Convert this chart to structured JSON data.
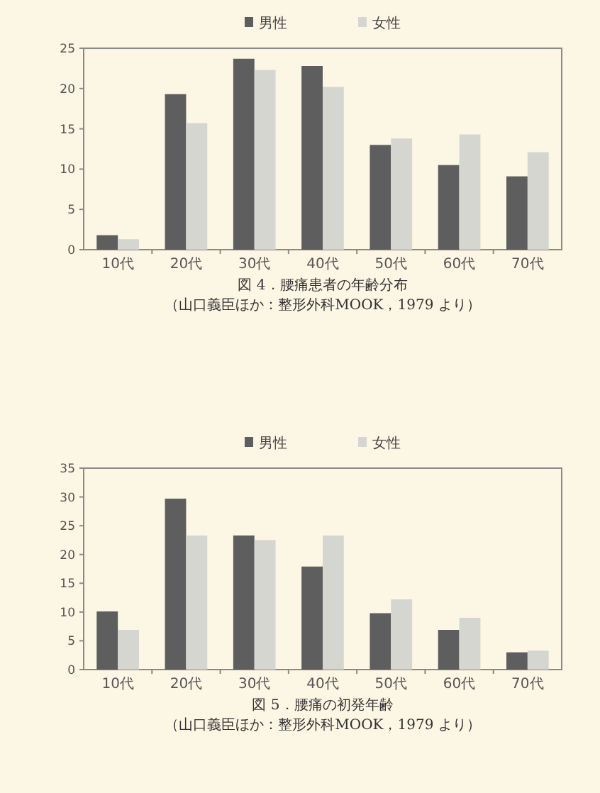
{
  "chart_data": [
    {
      "type": "bar",
      "title": "図 4．腰痛患者の年齢分布",
      "annotations": [
        "（山口義臣ほか：整形外科MOOK，1979 より）"
      ],
      "categories": [
        "10代",
        "20代",
        "30代",
        "40代",
        "50代",
        "60代",
        "70代"
      ],
      "series": [
        {
          "name": "男性",
          "color": "#5e5e5e",
          "values": [
            1.8,
            19.3,
            23.7,
            22.8,
            13.0,
            10.5,
            9.1
          ]
        },
        {
          "name": "女性",
          "color": "#d6d6d0",
          "values": [
            1.3,
            15.7,
            22.3,
            20.2,
            13.8,
            14.3,
            12.1
          ]
        }
      ],
      "ylim": [
        0,
        25
      ],
      "yticks": [
        0,
        5,
        10,
        15,
        20,
        25
      ],
      "legend": "top"
    },
    {
      "type": "bar",
      "title": "図 5．腰痛の初発年齢",
      "annotations": [
        "（山口義臣ほか：整形外科MOOK，1979 より）"
      ],
      "categories": [
        "10代",
        "20代",
        "30代",
        "40代",
        "50代",
        "60代",
        "70代"
      ],
      "series": [
        {
          "name": "男性",
          "color": "#5e5e5e",
          "values": [
            10.1,
            29.7,
            23.3,
            17.9,
            9.8,
            6.9,
            3.0
          ]
        },
        {
          "name": "女性",
          "color": "#d6d6d0",
          "values": [
            6.9,
            23.3,
            22.5,
            23.3,
            12.2,
            9.0,
            3.3
          ]
        }
      ],
      "ylim": [
        0,
        35
      ],
      "yticks": [
        0,
        5,
        10,
        15,
        20,
        25,
        30,
        35
      ],
      "legend": "top"
    }
  ]
}
